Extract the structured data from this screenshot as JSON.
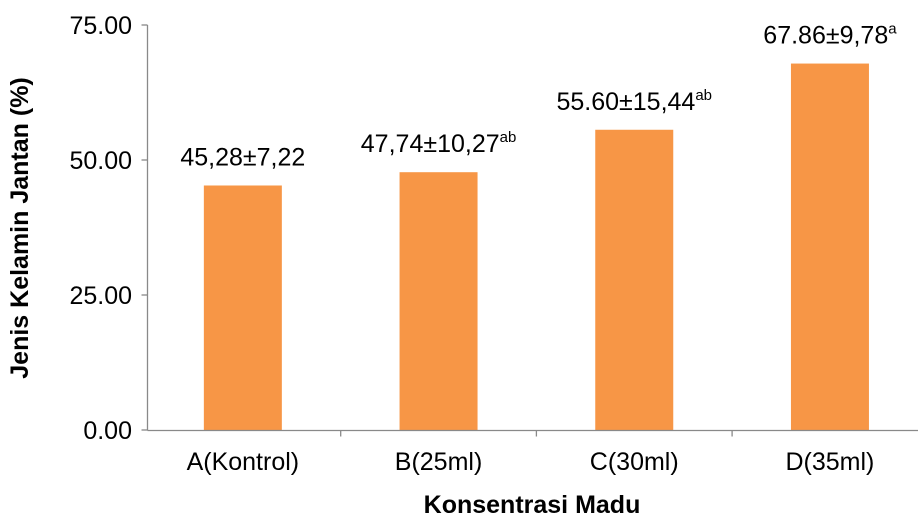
{
  "chart_data": {
    "type": "bar",
    "categories": [
      "A(Kontrol)",
      "B(25ml)",
      "C(30ml)",
      "D(35ml)"
    ],
    "values": [
      45.28,
      47.74,
      55.6,
      67.86
    ],
    "data_labels": [
      {
        "text": "45,28±7,22"
      },
      {
        "text": "47,74±10,27",
        "sup": "ab"
      },
      {
        "text": "55.60±15,44",
        "sup": "ab"
      },
      {
        "text": "67.86±9,78",
        "sup": "a"
      }
    ],
    "yticks": [
      "0.00",
      "25.00",
      "50.00",
      "75.00"
    ],
    "ylim": [
      0,
      75
    ],
    "xlabel": "Konsentrasi Madu",
    "ylabel": "Jenis Kelamin Jantan (%)",
    "grid": false,
    "bar_color": "#F79646"
  }
}
